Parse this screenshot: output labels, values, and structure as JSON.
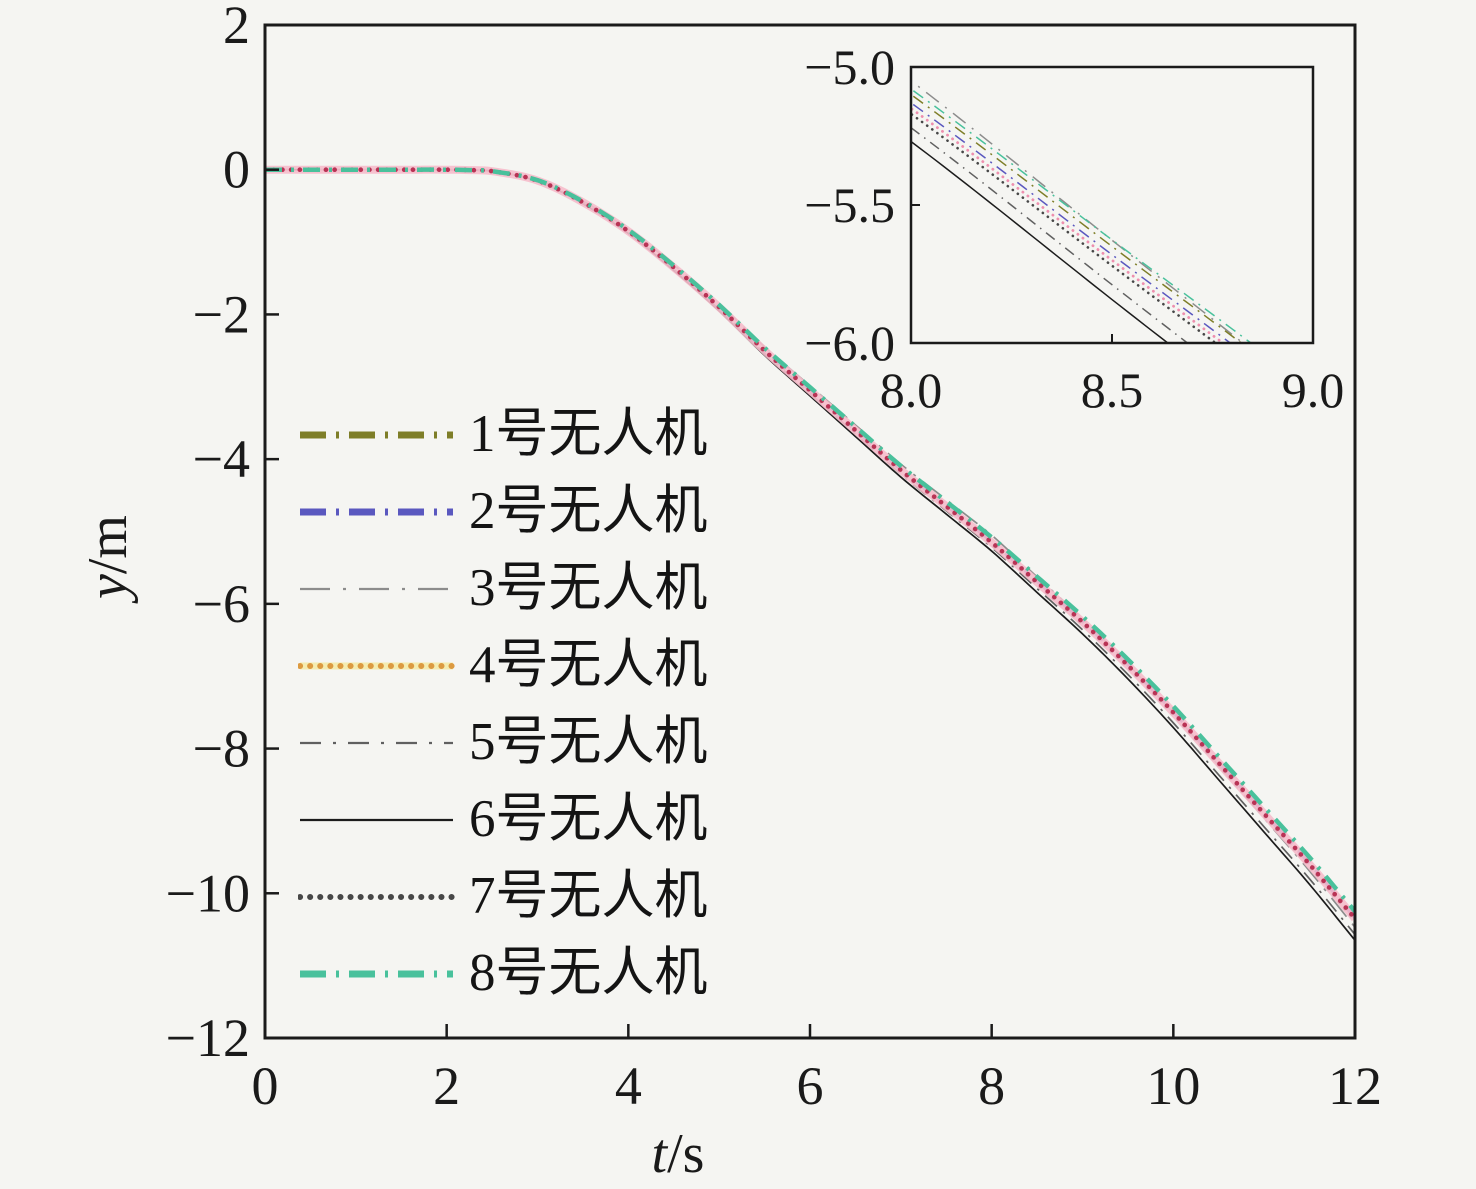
{
  "chart_data": {
    "type": "line",
    "title": "",
    "xlabel_var": "t",
    "xlabel_unit": "/s",
    "ylabel_var": "y",
    "ylabel_unit": "/m",
    "xlim": [
      0,
      12
    ],
    "ylim": [
      -12,
      2
    ],
    "grid": false,
    "legend_position": "left-middle, no frame",
    "xticks": [
      {
        "v": 0,
        "label": "0"
      },
      {
        "v": 2,
        "label": "2"
      },
      {
        "v": 4,
        "label": "4"
      },
      {
        "v": 6,
        "label": "6"
      },
      {
        "v": 8,
        "label": "8"
      },
      {
        "v": 10,
        "label": "10"
      },
      {
        "v": 12,
        "label": "12"
      }
    ],
    "yticks": [
      {
        "v": 2,
        "label": "2"
      },
      {
        "v": 0,
        "label": "0"
      },
      {
        "v": -2,
        "label": "−2"
      },
      {
        "v": -4,
        "label": "−4"
      },
      {
        "v": -6,
        "label": "−6"
      },
      {
        "v": -8,
        "label": "−8"
      },
      {
        "v": -10,
        "label": "−10"
      },
      {
        "v": -12,
        "label": "−12"
      }
    ],
    "center_curve": {
      "t": [
        0,
        0.5,
        1,
        1.5,
        2,
        2.25,
        2.5,
        3,
        3.5,
        4,
        4.5,
        5,
        5.5,
        6,
        6.5,
        7,
        7.5,
        8,
        8.5,
        9,
        9.5,
        10,
        10.5,
        11,
        11.5,
        12
      ],
      "y": [
        0,
        0,
        0,
        0,
        0,
        -0.005,
        -0.02,
        -0.15,
        -0.45,
        -0.85,
        -1.35,
        -1.9,
        -2.5,
        -3.05,
        -3.6,
        -4.15,
        -4.65,
        -5.15,
        -5.7,
        -6.25,
        -6.85,
        -7.5,
        -8.2,
        -8.9,
        -9.6,
        -10.35
      ]
    },
    "offset_ramp": {
      "start": 2.6,
      "mid": 8,
      "end": 12
    },
    "draw_order": [
      6,
      5,
      3,
      1,
      2,
      7,
      4,
      8
    ],
    "series": [
      {
        "id": 1,
        "name": "1号无人机",
        "color": "#7e7e28",
        "off8": 0.05,
        "off12": 0.05,
        "main": {
          "w": 4.5,
          "dash": "17 9 3 9",
          "cap": "butt"
        },
        "inset": {
          "w": 1.5,
          "dash": "12 6 2 6",
          "cap": "butt"
        },
        "legend": {
          "w": 7,
          "dash": "26 10 3 10",
          "cap": "butt"
        }
      },
      {
        "id": 2,
        "name": "2号无人机",
        "color": "#5a58bf",
        "off8": 0.02,
        "off12": 0.02,
        "main": {
          "w": 4.5,
          "dash": "17 9 3 9",
          "cap": "butt"
        },
        "inset": {
          "w": 1.5,
          "dash": "12 6 2 6",
          "cap": "butt"
        },
        "legend": {
          "w": 7,
          "dash": "26 10 3 10",
          "cap": "butt"
        }
      },
      {
        "id": 3,
        "name": "3号无人机",
        "color": "#8c8c8c",
        "off8": 0.1,
        "off12": -0.12,
        "main": {
          "w": 1.7,
          "dash": "24 9 3 9",
          "cap": "butt"
        },
        "inset": {
          "w": 1.5,
          "dash": "16 8 2 8",
          "cap": "butt"
        },
        "legend": {
          "w": 2.2,
          "dash": "30 13 3 13",
          "cap": "butt"
        }
      },
      {
        "id": 4,
        "name": "4号无人机",
        "color": "#b93355",
        "legend_color": "#dc9a40",
        "halo_main": "#f6bccb",
        "halo_legend": "#f4ecb0",
        "off8": 0.0,
        "off12": 0.0,
        "main": {
          "w": 4.6,
          "dash": "0.1 8.6",
          "cap": "round",
          "halo_w": 8
        },
        "inset": {
          "w": 2.8,
          "dash": "0.1 6.2",
          "cap": "round",
          "inset_color": "#ee8fae"
        },
        "legend": {
          "w": 6,
          "dash": "0.1 10",
          "cap": "round",
          "halo_w": 7
        }
      },
      {
        "id": 5,
        "name": "5号无人机",
        "color": "#606060",
        "off8": -0.07,
        "off12": -0.22,
        "main": {
          "w": 1.7,
          "dash": "16 8 2.5 8",
          "cap": "butt"
        },
        "inset": {
          "w": 1.5,
          "dash": "11 6 1.5 6",
          "cap": "butt"
        },
        "legend": {
          "w": 2.2,
          "dash": "21 12 3 12",
          "cap": "butt"
        }
      },
      {
        "id": 6,
        "name": "6号无人机",
        "color": "#1c1c1c",
        "off8": -0.12,
        "off12": -0.3,
        "main": {
          "w": 1.7,
          "dash": "",
          "cap": "butt"
        },
        "inset": {
          "w": 1.5,
          "dash": "",
          "cap": "butt"
        },
        "legend": {
          "w": 2.2,
          "dash": "",
          "cap": "butt"
        }
      },
      {
        "id": 7,
        "name": "7号无人机",
        "color": "#474747",
        "off8": -0.02,
        "off12": -0.02,
        "main": {
          "w": 4.8,
          "dash": "0.1 8.6",
          "cap": "round"
        },
        "inset": {
          "w": 2.6,
          "dash": "0.1 6.2",
          "cap": "round"
        },
        "legend": {
          "w": 6,
          "dash": "0.1 10",
          "cap": "round"
        }
      },
      {
        "id": 8,
        "name": "8号无人机",
        "color": "#49c19c",
        "off8": 0.07,
        "off12": 0.1,
        "main": {
          "w": 4.5,
          "dash": "17 9 3 9",
          "cap": "butt"
        },
        "inset": {
          "w": 1.5,
          "dash": "12 6 2 6",
          "cap": "butt"
        },
        "legend": {
          "w": 7,
          "dash": "26 10 3 10",
          "cap": "butt"
        }
      }
    ],
    "inset": {
      "xlim": [
        8,
        9
      ],
      "ylim": [
        -6,
        -5
      ],
      "xticks": [
        {
          "v": 8,
          "label": "8.0"
        },
        {
          "v": 8.5,
          "label": "8.5"
        },
        {
          "v": 9,
          "label": "9.0"
        }
      ],
      "yticks": [
        {
          "v": -5,
          "label": "−5.0"
        },
        {
          "v": -5.5,
          "label": "−5.5"
        },
        {
          "v": -6,
          "label": "−6.0"
        }
      ]
    }
  }
}
